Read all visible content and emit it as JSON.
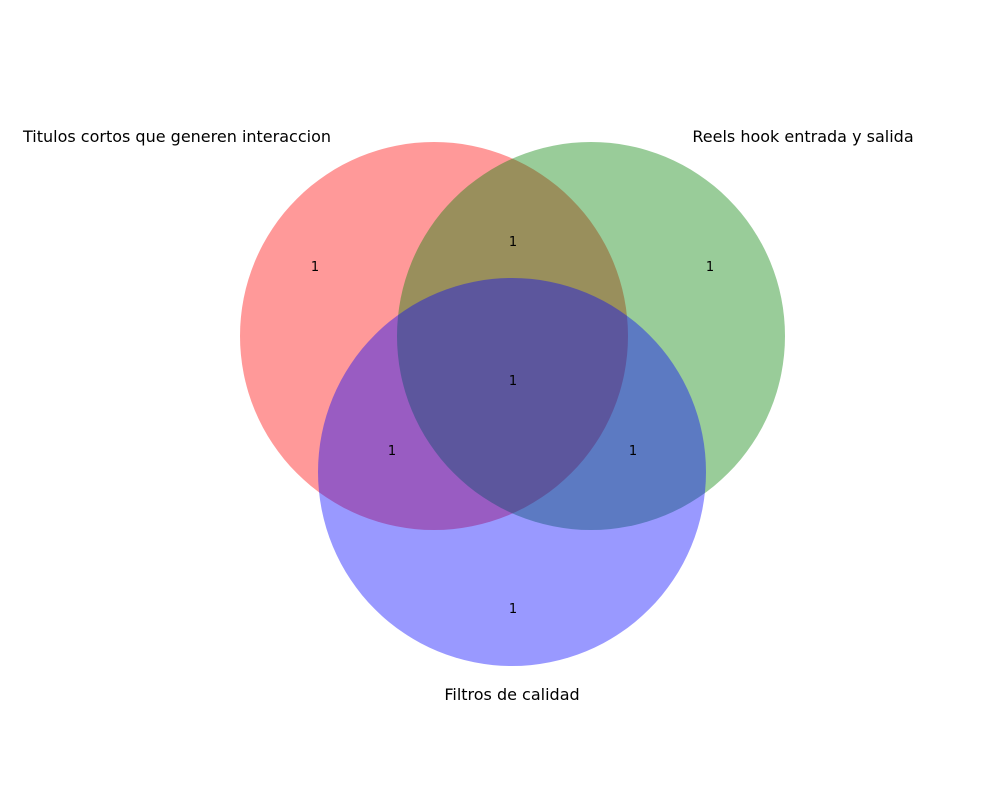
{
  "venn": {
    "sets": [
      {
        "name": "Titulos cortos que generen interaccion",
        "color": "#ff0000"
      },
      {
        "name": "Reels hook entrada y salida",
        "color": "#008000"
      },
      {
        "name": "Filtros de calidad",
        "color": "#0000ff"
      }
    ],
    "regions": {
      "a_only": "1",
      "b_only": "1",
      "c_only": "1",
      "ab": "1",
      "ac": "1",
      "bc": "1",
      "abc": "1"
    },
    "fill_opacity": 0.4
  }
}
